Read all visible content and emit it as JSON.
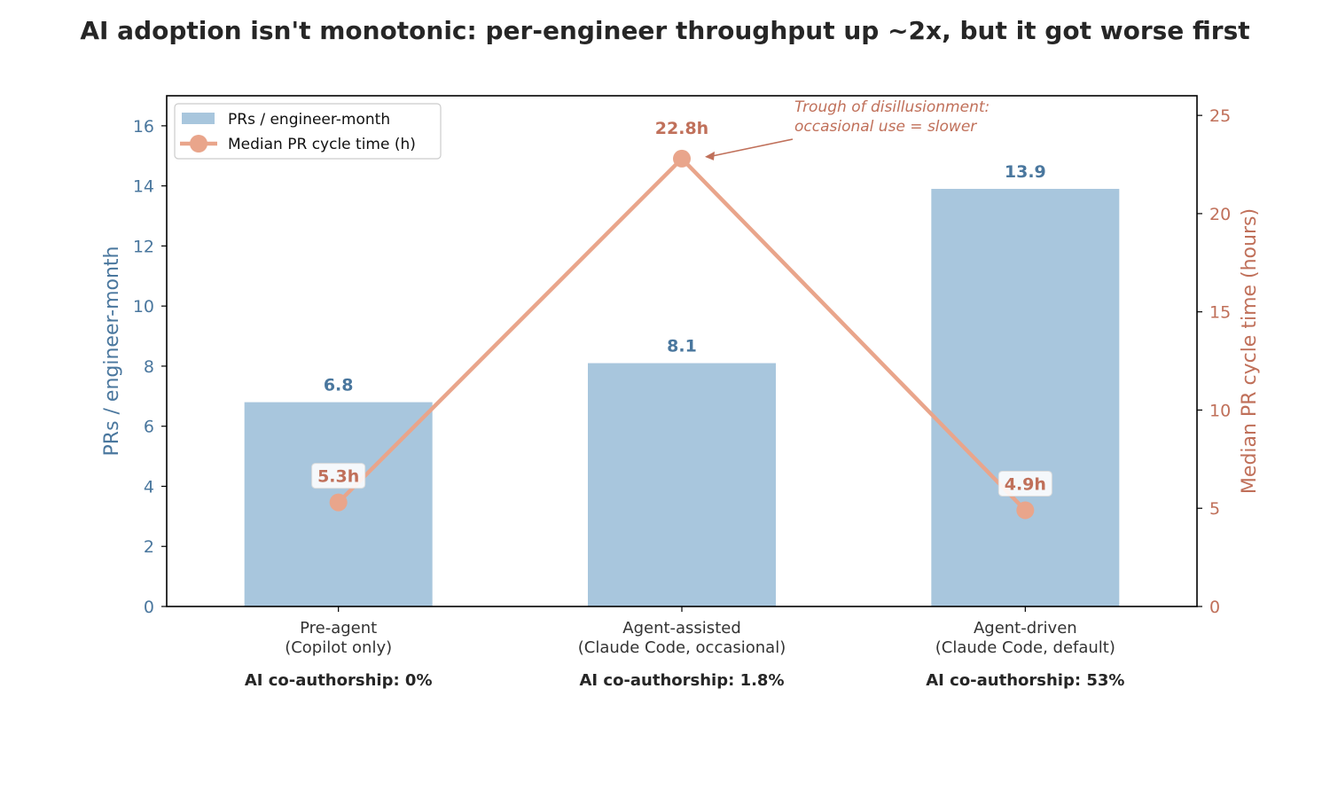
{
  "chart_data": {
    "type": "bar",
    "title": "AI adoption isn't monotonic: per-engineer throughput up ~2x, but it got worse first",
    "categories": [
      [
        "Pre-agent",
        "(Copilot only)"
      ],
      [
        "Agent-assisted",
        "(Claude Code, occasional)"
      ],
      [
        "Agent-driven",
        "(Claude Code, default)"
      ]
    ],
    "category_notes": [
      "AI co-authorship: 0%",
      "AI co-authorship: 1.8%",
      "AI co-authorship: 53%"
    ],
    "series": [
      {
        "name": "PRs / engineer-month",
        "type": "bar",
        "axis": "left",
        "values": [
          6.8,
          8.1,
          13.9
        ],
        "labels": [
          "6.8",
          "8.1",
          "13.9"
        ],
        "color": "#a8c6dd",
        "label_color": "#4a779e"
      },
      {
        "name": "Median PR cycle time (h)",
        "type": "line",
        "axis": "right",
        "values": [
          5.3,
          22.8,
          4.9
        ],
        "labels": [
          "5.3h",
          "22.8h",
          "4.9h"
        ],
        "color": "#e9a58b",
        "label_color": "#c0705a"
      }
    ],
    "ylabel": "PRs / engineer-month",
    "ylabel_color": "#4a779e",
    "ylim": [
      0,
      17
    ],
    "yticks": [
      0,
      2,
      4,
      6,
      8,
      10,
      12,
      14,
      16
    ],
    "y2label": "Median PR cycle time (hours)",
    "y2label_color": "#c0705a",
    "y2lim": [
      0,
      26
    ],
    "y2ticks": [
      0,
      5,
      10,
      15,
      20,
      25
    ],
    "annotation": {
      "lines": [
        "Trough of disillusionment:",
        "occasional use = slower"
      ],
      "target_category": 1,
      "color": "#c0705a"
    },
    "legend": "top-left",
    "grid": false
  }
}
